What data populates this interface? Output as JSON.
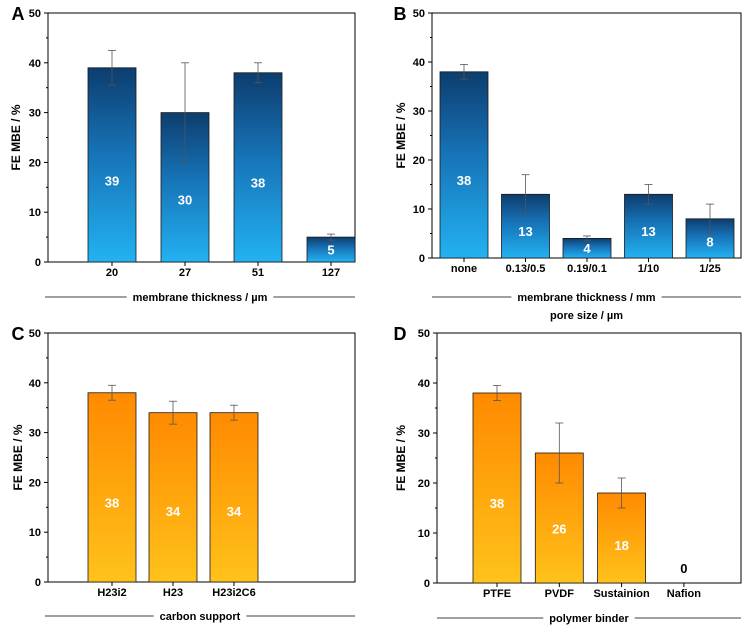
{
  "chart_data": [
    {
      "panel": "A",
      "type": "bar",
      "ylabel": "FE MBE / %",
      "xlabels": [
        "membrane thickness / µm"
      ],
      "ylim": [
        0,
        50
      ],
      "yticks": [
        0,
        10,
        20,
        30,
        40,
        50
      ],
      "categories": [
        "20",
        "27",
        "51",
        "127"
      ],
      "values": [
        39,
        30,
        38,
        5
      ],
      "errors": [
        3.5,
        10,
        2,
        0.6
      ],
      "value_labels": [
        "39",
        "30",
        "38",
        "5"
      ],
      "bar_color_top": "#0d3d6e",
      "bar_color_bottom": "#22b2f2"
    },
    {
      "panel": "B",
      "type": "bar",
      "ylabel": "FE MBE / %",
      "xlabels": [
        "membrane thickness / mm",
        "pore size / µm"
      ],
      "ylim": [
        0,
        50
      ],
      "yticks": [
        0,
        10,
        20,
        30,
        40,
        50
      ],
      "categories": [
        "none",
        "0.13/0.5",
        "0.19/0.1",
        "1/10",
        "1/25"
      ],
      "values": [
        38,
        13,
        4,
        13,
        8
      ],
      "errors": [
        1.5,
        4,
        0.5,
        2,
        3
      ],
      "value_labels": [
        "38",
        "13",
        "4",
        "13",
        "8"
      ],
      "bar_color_top": "#0d3d6e",
      "bar_color_bottom": "#22b2f2"
    },
    {
      "panel": "C",
      "type": "bar",
      "ylabel": "FE MBE / %",
      "xlabels": [
        "carbon support"
      ],
      "ylim": [
        0,
        50
      ],
      "yticks": [
        0,
        10,
        20,
        30,
        40,
        50
      ],
      "categories": [
        "H23i2",
        "H23",
        "H23i2C6"
      ],
      "values": [
        38,
        34,
        34
      ],
      "errors": [
        1.5,
        2.3,
        1.5
      ],
      "value_labels": [
        "38",
        "34",
        "34"
      ],
      "bar_color_top": "#ff8a00",
      "bar_color_bottom": "#ffc21a"
    },
    {
      "panel": "D",
      "type": "bar",
      "ylabel": "FE MBE / %",
      "xlabels": [
        "polymer binder"
      ],
      "ylim": [
        0,
        50
      ],
      "yticks": [
        0,
        10,
        20,
        30,
        40,
        50
      ],
      "categories": [
        "PTFE",
        "PVDF",
        "Sustainion",
        "Nafion"
      ],
      "values": [
        38,
        26,
        18,
        0
      ],
      "errors": [
        1.5,
        6,
        3,
        0
      ],
      "value_labels": [
        "38",
        "26",
        "18",
        "0"
      ],
      "bar_color_top": "#ff8a00",
      "bar_color_bottom": "#ffc21a"
    }
  ]
}
